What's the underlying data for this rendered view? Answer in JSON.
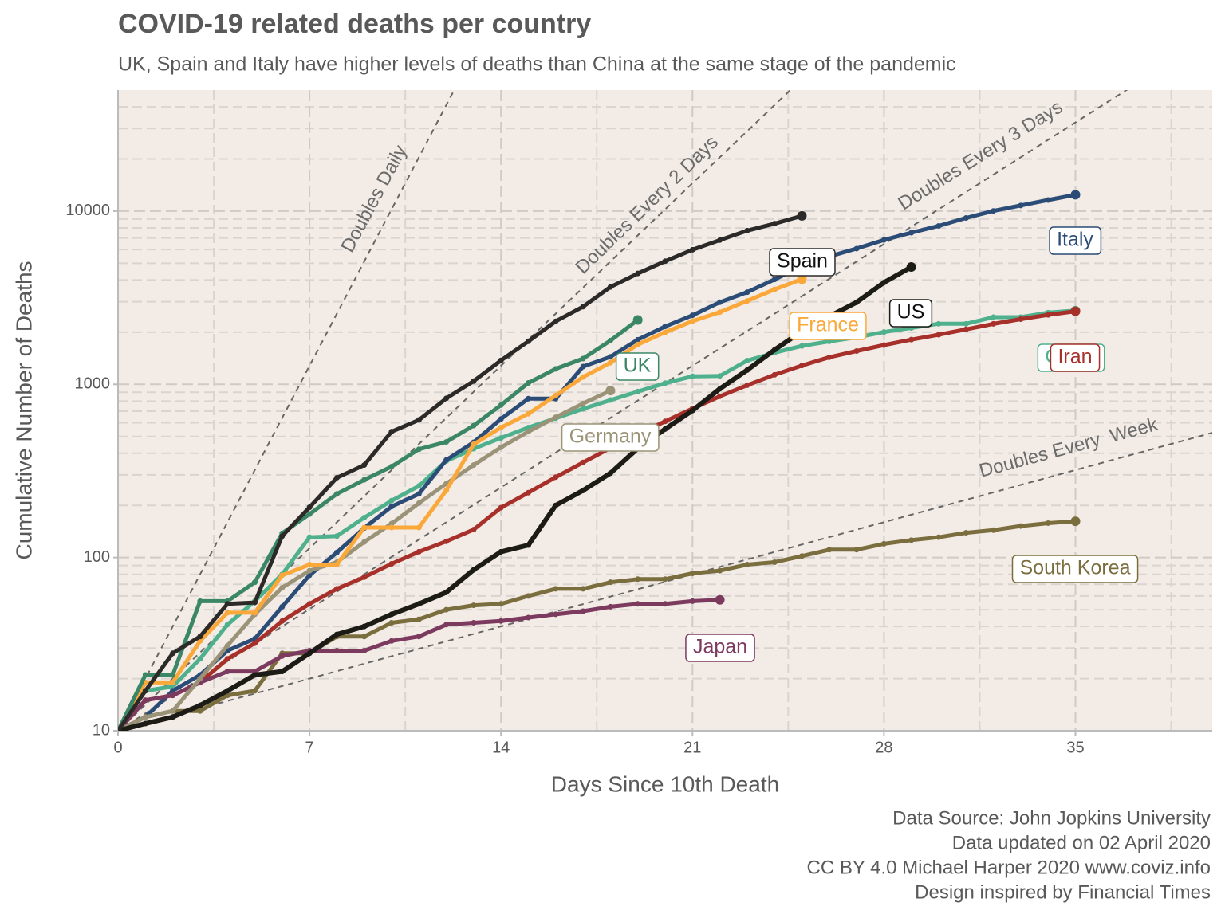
{
  "chart_data": {
    "type": "line",
    "title": "COVID-19 related deaths per country",
    "subtitle": "UK, Spain and Italy have higher levels of deaths than China at the same stage of the pandemic",
    "x_label": "Days Since 10th Death",
    "y_label": "Cumulative Number of Deaths",
    "caption": [
      "Data Source: John Jopkins University",
      "Data updated on 02 April 2020",
      "CC BY 4.0 Michael Harper 2020 www.coviz.info",
      "Design inspired by Financial Times"
    ],
    "xlim": [
      0,
      40
    ],
    "xticks": [
      0,
      7,
      14,
      21,
      28,
      35
    ],
    "x_minor_ticks": [
      3.5,
      10.5,
      17.5,
      24.5,
      31.5,
      38.5
    ],
    "ylim": [
      10,
      50000
    ],
    "y_log_scale": true,
    "yticks": [
      10,
      100,
      1000,
      10000
    ],
    "y_minor_ticks": [
      20,
      30,
      40,
      50,
      60,
      70,
      80,
      90,
      200,
      300,
      400,
      500,
      600,
      700,
      800,
      900,
      2000,
      3000,
      4000,
      5000,
      6000,
      7000,
      8000,
      9000,
      20000,
      30000,
      40000
    ],
    "grid": true,
    "background": "#f3ece6",
    "reference_lines": [
      {
        "label": "Doubles Daily",
        "doubling_days": 1
      },
      {
        "label": "Doubles Every 2 Days",
        "doubling_days": 2
      },
      {
        "label": "Doubles Every 3 Days",
        "doubling_days": 3
      },
      {
        "label": "Doubles Every  Week",
        "doubling_days": 7
      }
    ],
    "series": [
      {
        "name": "China",
        "color": "#4fb08e",
        "values": [
          10,
          17,
          18,
          26,
          41,
          56,
          80,
          131,
          133,
          170,
          213,
          259,
          361,
          425,
          490,
          563,
          637,
          722,
          811,
          908,
          1016,
          1113,
          1118,
          1371,
          1523,
          1666,
          1770,
          1868,
          2004,
          2118,
          2236,
          2236,
          2441,
          2443,
          2593,
          2663
        ]
      },
      {
        "name": "Italy",
        "color": "#2b4c77",
        "values": [
          10,
          12,
          17,
          21,
          29,
          34,
          52,
          79,
          107,
          148,
          197,
          233,
          366,
          463,
          631,
          827,
          827,
          1266,
          1441,
          1809,
          2158,
          2503,
          2978,
          3405,
          4032,
          4825,
          5476,
          6077,
          6820,
          7503,
          8215,
          9134,
          10023,
          10779,
          11591,
          12428
        ]
      },
      {
        "name": "Iran",
        "color": "#a8302a",
        "values": [
          10,
          15,
          16,
          19,
          26,
          32,
          43,
          54,
          66,
          77,
          92,
          108,
          124,
          145,
          194,
          237,
          291,
          354,
          429,
          514,
          611,
          724,
          853,
          988,
          1135,
          1284,
          1433,
          1556,
          1685,
          1812,
          1934,
          2077,
          2234,
          2378,
          2517,
          2640
        ]
      },
      {
        "name": "South Korea",
        "color": "#7b6e3e",
        "values": [
          10,
          12,
          13,
          13,
          16,
          17,
          28,
          28,
          35,
          35,
          42,
          44,
          50,
          53,
          54,
          60,
          66,
          66,
          72,
          75,
          75,
          81,
          84,
          91,
          94,
          102,
          111,
          111,
          120,
          126,
          131,
          139,
          144,
          152,
          158,
          162
        ]
      },
      {
        "name": "Japan",
        "color": "#7c3a5f",
        "values": [
          10,
          15,
          16,
          19,
          22,
          22,
          27,
          29,
          29,
          29,
          33,
          35,
          41,
          42,
          43,
          45,
          47,
          49,
          52,
          54,
          54,
          56,
          57
        ]
      },
      {
        "name": "Germany",
        "color": "#9b9377",
        "values": [
          10,
          12,
          13,
          20,
          31,
          47,
          67,
          84,
          94,
          123,
          157,
          206,
          267,
          342,
          433,
          533,
          645,
          775,
          920
        ]
      },
      {
        "name": "France",
        "color": "#fba83a",
        "values": [
          10,
          19,
          19,
          33,
          48,
          48,
          79,
          91,
          91,
          149,
          149,
          149,
          244,
          451,
          563,
          676,
          862,
          1102,
          1333,
          1698,
          1997,
          2317,
          2611,
          3030,
          3532,
          4043
        ]
      },
      {
        "name": "UK",
        "color": "#3b8666",
        "values": [
          10,
          21,
          21,
          56,
          56,
          72,
          138,
          178,
          233,
          281,
          335,
          422,
          465,
          578,
          759,
          1019,
          1228,
          1408,
          1789,
          2352
        ]
      },
      {
        "name": "US",
        "color": "#1c1b16",
        "values": [
          10,
          11,
          12,
          14,
          17,
          21,
          22,
          28,
          36,
          40,
          47,
          54,
          63,
          85,
          108,
          118,
          200,
          244,
          307,
          427,
          552,
          706,
          942,
          1209,
          1581,
          2026,
          2467,
          2978,
          3873,
          4757
        ]
      },
      {
        "name": "Spain",
        "color": "#2c2a28",
        "values": [
          10,
          17,
          28,
          35,
          54,
          55,
          133,
          195,
          289,
          342,
          533,
          623,
          830,
          1043,
          1375,
          1772,
          2311,
          2808,
          3647,
          4365,
          5138,
          5982,
          6803,
          7716,
          8464,
          9387
        ]
      }
    ]
  }
}
